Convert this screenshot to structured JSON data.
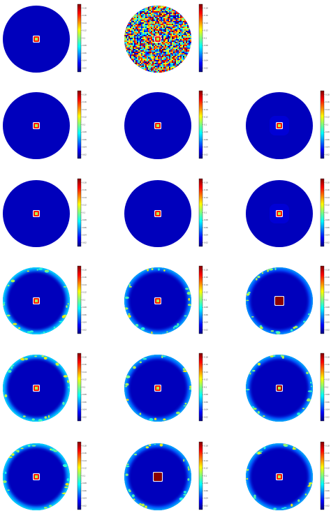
{
  "colormap": {
    "name": "jet",
    "stops": [
      "#00007f",
      "#0000ff",
      "#007fff",
      "#00ffff",
      "#7fff7f",
      "#ffff00",
      "#ff7f00",
      "#ff0000",
      "#7f0000"
    ]
  },
  "colorbar": {
    "ticks": [
      "0.02",
      "0.04",
      "0.06",
      "0.08",
      "0.1",
      "0.12",
      "0.14",
      "0.16",
      "0.18"
    ]
  },
  "panels": [
    {
      "row": 1,
      "col": 1,
      "background": "uniform",
      "edge_level": 0.0,
      "center_level": 0.85
    },
    {
      "row": 1,
      "col": 2,
      "background": "noise",
      "edge_level": 0.0,
      "center_level": 0.85
    },
    {
      "row": 2,
      "col": 1,
      "background": "uniform",
      "edge_level": 0.0,
      "center_level": 0.85
    },
    {
      "row": 2,
      "col": 2,
      "background": "uniform",
      "edge_level": 0.0,
      "center_level": 0.85
    },
    {
      "row": 2,
      "col": 3,
      "background": "faint-ring",
      "edge_level": 0.05,
      "center_level": 0.85
    },
    {
      "row": 3,
      "col": 1,
      "background": "uniform",
      "edge_level": 0.0,
      "center_level": 0.85
    },
    {
      "row": 3,
      "col": 2,
      "background": "uniform",
      "edge_level": 0.0,
      "center_level": 0.85
    },
    {
      "row": 3,
      "col": 3,
      "background": "faint-ring",
      "edge_level": 0.05,
      "center_level": 0.85
    },
    {
      "row": 4,
      "col": 1,
      "background": "edge-glow",
      "edge_level": 0.35,
      "center_level": 0.85
    },
    {
      "row": 4,
      "col": 2,
      "background": "edge-glow",
      "edge_level": 0.3,
      "center_level": 0.85
    },
    {
      "row": 4,
      "col": 3,
      "background": "edge-glow",
      "edge_level": 0.28,
      "center_level": 1.0
    },
    {
      "row": 5,
      "col": 1,
      "background": "edge-glow",
      "edge_level": 0.35,
      "center_level": 0.85
    },
    {
      "row": 5,
      "col": 2,
      "background": "edge-glow",
      "edge_level": 0.3,
      "center_level": 0.85
    },
    {
      "row": 5,
      "col": 3,
      "background": "edge-glow",
      "edge_level": 0.3,
      "center_level": 0.95
    },
    {
      "row": 6,
      "col": 1,
      "background": "edge-glow",
      "edge_level": 0.35,
      "center_level": 0.85
    },
    {
      "row": 6,
      "col": 2,
      "background": "edge-glow",
      "edge_level": 0.3,
      "center_level": 1.0
    },
    {
      "row": 6,
      "col": 3,
      "background": "edge-glow",
      "edge_level": 0.3,
      "center_level": 0.85
    }
  ]
}
